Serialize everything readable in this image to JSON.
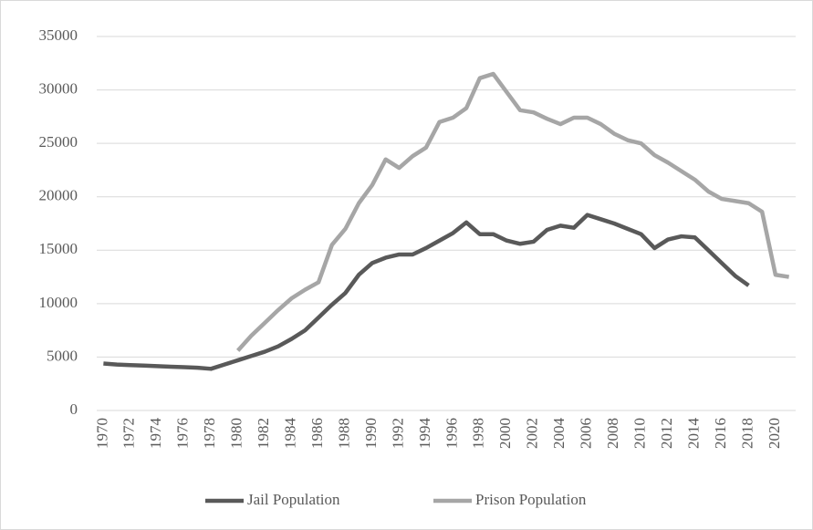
{
  "chart_data": {
    "type": "line",
    "x": [
      1970,
      1971,
      1972,
      1973,
      1974,
      1975,
      1976,
      1977,
      1978,
      1979,
      1980,
      1981,
      1982,
      1983,
      1984,
      1985,
      1986,
      1987,
      1988,
      1989,
      1990,
      1991,
      1992,
      1993,
      1994,
      1995,
      1996,
      1997,
      1998,
      1999,
      2000,
      2001,
      2002,
      2003,
      2004,
      2005,
      2006,
      2007,
      2008,
      2009,
      2010,
      2011,
      2012,
      2013,
      2014,
      2015,
      2016,
      2017,
      2018,
      2019,
      2020,
      2021
    ],
    "series": [
      {
        "name": "Jail Population",
        "color": "#595959",
        "values": [
          4400,
          4300,
          4250,
          4200,
          4150,
          4100,
          4050,
          4000,
          3900,
          4300,
          4700,
          5100,
          5500,
          6000,
          6700,
          7500,
          8700,
          9900,
          11000,
          12700,
          13800,
          14300,
          14600,
          14600,
          15200,
          15900,
          16600,
          17600,
          16500,
          16500,
          15900,
          15600,
          15800,
          16900,
          17300,
          17100,
          18300,
          17900,
          17500,
          17000,
          16500,
          15200,
          16000,
          16300,
          16200,
          15000,
          13800,
          12600,
          11700,
          null,
          null,
          null
        ]
      },
      {
        "name": "Prison Population",
        "color": "#a6a6a6",
        "values": [
          null,
          null,
          null,
          null,
          null,
          null,
          null,
          null,
          null,
          null,
          5600,
          7000,
          8200,
          9400,
          10500,
          11300,
          12000,
          15500,
          17000,
          19400,
          21100,
          23500,
          22700,
          23800,
          24600,
          27000,
          27400,
          28300,
          31100,
          31500,
          29800,
          28100,
          27900,
          27300,
          26800,
          27400,
          27400,
          26800,
          25900,
          25300,
          25000,
          23900,
          23200,
          22400,
          21600,
          20500,
          19800,
          19600,
          19400,
          18600,
          12700,
          12500
        ]
      }
    ],
    "xlim": [
      1969.5,
      2021.5
    ],
    "xticks": [
      1970,
      1972,
      1974,
      1976,
      1978,
      1980,
      1982,
      1984,
      1986,
      1988,
      1990,
      1992,
      1994,
      1996,
      1998,
      2000,
      2002,
      2004,
      2006,
      2008,
      2010,
      2012,
      2014,
      2016,
      2018,
      2020
    ],
    "ylim": [
      0,
      35000
    ],
    "yticks": [
      0,
      5000,
      10000,
      15000,
      20000,
      25000,
      30000,
      35000
    ],
    "grid": true,
    "legend": "bottom"
  }
}
